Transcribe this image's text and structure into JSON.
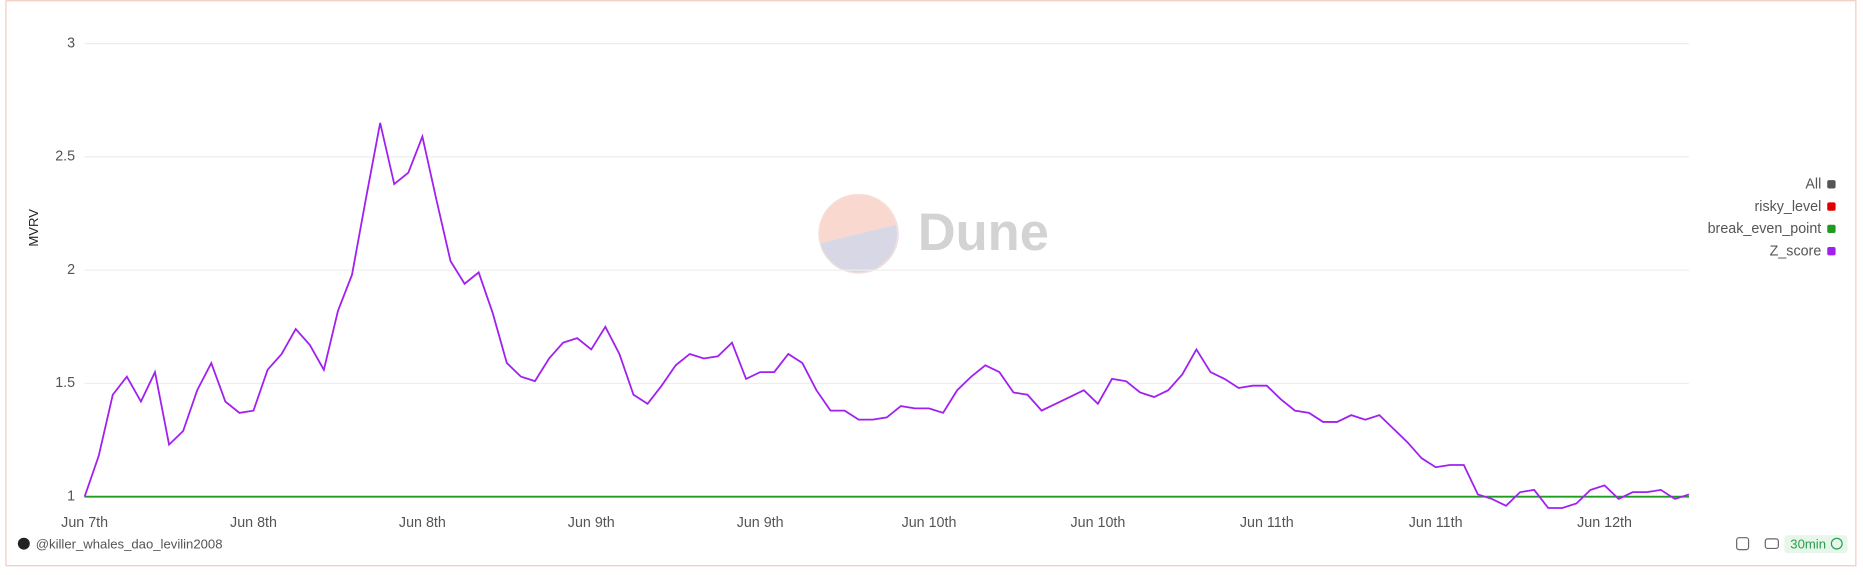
{
  "chart_data": {
    "type": "line",
    "y_label": "MVRV",
    "watermark": "Dune",
    "author": "@killer_whales_dao_levilin2008",
    "refresh": "30min",
    "ylim": [
      0.94,
      3.15
    ],
    "yticks": [
      1,
      1.5,
      2,
      2.5,
      3
    ],
    "grid": true,
    "legend_position": "right",
    "legend_all": {
      "label": "All",
      "color": "#555555"
    },
    "categories": [
      "Jun 7th",
      null,
      null,
      null,
      null,
      null,
      null,
      null,
      null,
      null,
      null,
      null,
      "Jun 8th",
      null,
      null,
      null,
      null,
      null,
      null,
      null,
      null,
      null,
      null,
      null,
      "Jun 8th",
      null,
      null,
      null,
      null,
      null,
      null,
      null,
      null,
      null,
      null,
      null,
      "Jun 9th",
      null,
      null,
      null,
      null,
      null,
      null,
      null,
      null,
      null,
      null,
      null,
      "Jun 9th",
      null,
      null,
      null,
      null,
      null,
      null,
      null,
      null,
      null,
      null,
      null,
      "Jun 10th",
      null,
      null,
      null,
      null,
      null,
      null,
      null,
      null,
      null,
      null,
      null,
      "Jun 10th",
      null,
      null,
      null,
      null,
      null,
      null,
      null,
      null,
      null,
      null,
      null,
      "Jun 11th",
      null,
      null,
      null,
      null,
      null,
      null,
      null,
      null,
      null,
      null,
      null,
      "Jun 11th",
      null,
      null,
      null,
      null,
      null,
      null,
      null,
      null,
      null,
      null,
      null,
      "Jun 12th",
      null,
      null,
      null,
      null,
      null,
      null
    ],
    "series": [
      {
        "name": "risky_level",
        "color": "#e00000"
      },
      {
        "name": "break_even_point",
        "color": "#1f9b1f",
        "values": [
          1,
          1,
          1,
          1,
          1,
          1,
          1,
          1,
          1,
          1,
          1,
          1,
          1,
          1,
          1,
          1,
          1,
          1,
          1,
          1,
          1,
          1,
          1,
          1,
          1,
          1,
          1,
          1,
          1,
          1,
          1,
          1,
          1,
          1,
          1,
          1,
          1,
          1,
          1,
          1,
          1,
          1,
          1,
          1,
          1,
          1,
          1,
          1,
          1,
          1,
          1,
          1,
          1,
          1,
          1,
          1,
          1,
          1,
          1,
          1,
          1,
          1,
          1,
          1,
          1,
          1,
          1,
          1,
          1,
          1,
          1,
          1,
          1,
          1,
          1,
          1,
          1,
          1,
          1,
          1,
          1,
          1,
          1,
          1,
          1,
          1,
          1,
          1,
          1,
          1,
          1,
          1,
          1,
          1,
          1,
          1,
          1,
          1,
          1,
          1,
          1,
          1,
          1,
          1,
          1,
          1,
          1,
          1,
          1,
          1,
          1,
          1,
          1,
          1,
          1
        ]
      },
      {
        "name": "Z_score",
        "color": "#a020f0",
        "values": [
          1.0,
          1.18,
          1.45,
          1.53,
          1.42,
          1.55,
          1.23,
          1.29,
          1.47,
          1.59,
          1.42,
          1.37,
          1.38,
          1.56,
          1.63,
          1.74,
          1.67,
          1.56,
          1.82,
          1.98,
          2.32,
          2.65,
          2.38,
          2.43,
          2.59,
          2.31,
          2.04,
          1.94,
          1.99,
          1.81,
          1.59,
          1.53,
          1.51,
          1.61,
          1.68,
          1.7,
          1.65,
          1.75,
          1.63,
          1.45,
          1.41,
          1.49,
          1.58,
          1.63,
          1.61,
          1.62,
          1.68,
          1.52,
          1.55,
          1.55,
          1.63,
          1.59,
          1.47,
          1.38,
          1.38,
          1.34,
          1.34,
          1.35,
          1.4,
          1.39,
          1.39,
          1.37,
          1.47,
          1.53,
          1.58,
          1.55,
          1.46,
          1.45,
          1.38,
          1.41,
          1.44,
          1.47,
          1.41,
          1.52,
          1.51,
          1.46,
          1.44,
          1.47,
          1.54,
          1.65,
          1.55,
          1.52,
          1.48,
          1.49,
          1.49,
          1.43,
          1.38,
          1.37,
          1.33,
          1.33,
          1.36,
          1.34,
          1.36,
          1.3,
          1.24,
          1.17,
          1.13,
          1.14,
          1.14,
          1.01,
          0.99,
          0.96,
          1.02,
          1.03,
          0.95,
          0.95,
          0.97,
          1.03,
          1.05,
          0.99,
          1.02,
          1.02,
          1.03,
          0.99,
          1.01
        ]
      }
    ]
  }
}
